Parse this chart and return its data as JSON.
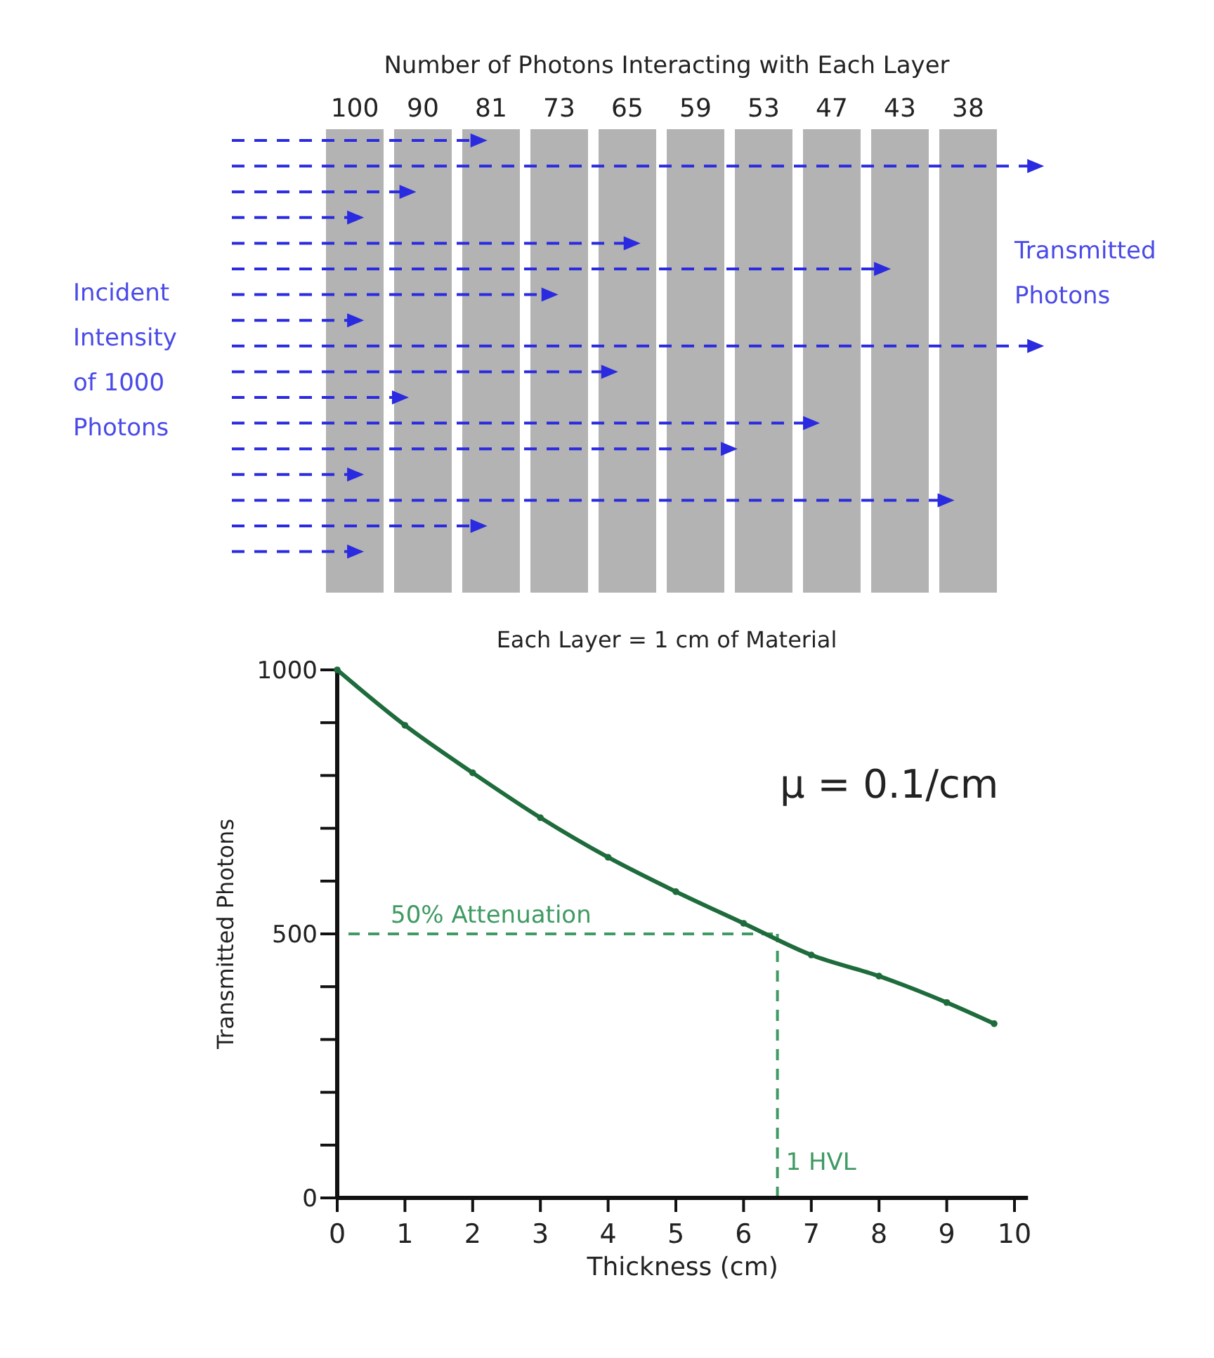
{
  "chart_data": [
    {
      "type": "other",
      "title": "Number of Photons Interacting with Each Layer",
      "values": [
        100,
        90,
        81,
        73,
        65,
        59,
        53,
        47,
        43,
        38
      ],
      "data_labels": true,
      "color": "#b3b3b3",
      "annotations": [
        "Incident Intensity of 1000 Photons",
        "Transmitted Photons",
        "Each Layer = 1 cm of Material"
      ]
    },
    {
      "type": "line",
      "xlabel": "Thickness (cm)",
      "ylabel": "Transmitted Photons",
      "x": [
        0,
        1,
        2,
        3,
        4,
        5,
        6,
        7,
        8,
        9,
        9.7
      ],
      "series": [
        {
          "color": "#1e6b3c",
          "values": [
            1000,
            895,
            805,
            720,
            645,
            580,
            520,
            460,
            420,
            370,
            330
          ]
        }
      ],
      "marker": "circle",
      "line_style": "solid",
      "grid": false,
      "xlim": [
        0,
        10.2
      ],
      "xticks": [
        0,
        1,
        2,
        3,
        4,
        5,
        6,
        7,
        8,
        9,
        10
      ],
      "ylim": [
        0,
        1000
      ],
      "yticks": [
        0,
        {
          "value": 100,
          "label": null
        },
        {
          "value": 200,
          "label": null
        },
        {
          "value": 300,
          "label": null
        },
        {
          "value": 400,
          "label": null
        },
        500,
        {
          "value": 600,
          "label": null
        },
        {
          "value": 700,
          "label": null
        },
        {
          "value": 800,
          "label": null
        },
        {
          "value": 900,
          "label": null
        },
        1000
      ],
      "ref_lines": [
        {
          "axis": "y",
          "value": 500,
          "label": "50% Attenuation",
          "color": "#3f9a63",
          "line_style": "dashed"
        },
        {
          "axis": "x",
          "value": 6.5,
          "label": "1 HVL",
          "color": "#3f9a63",
          "line_style": "dashed"
        }
      ],
      "annotations": [
        "μ = 0.1/cm"
      ]
    }
  ]
}
